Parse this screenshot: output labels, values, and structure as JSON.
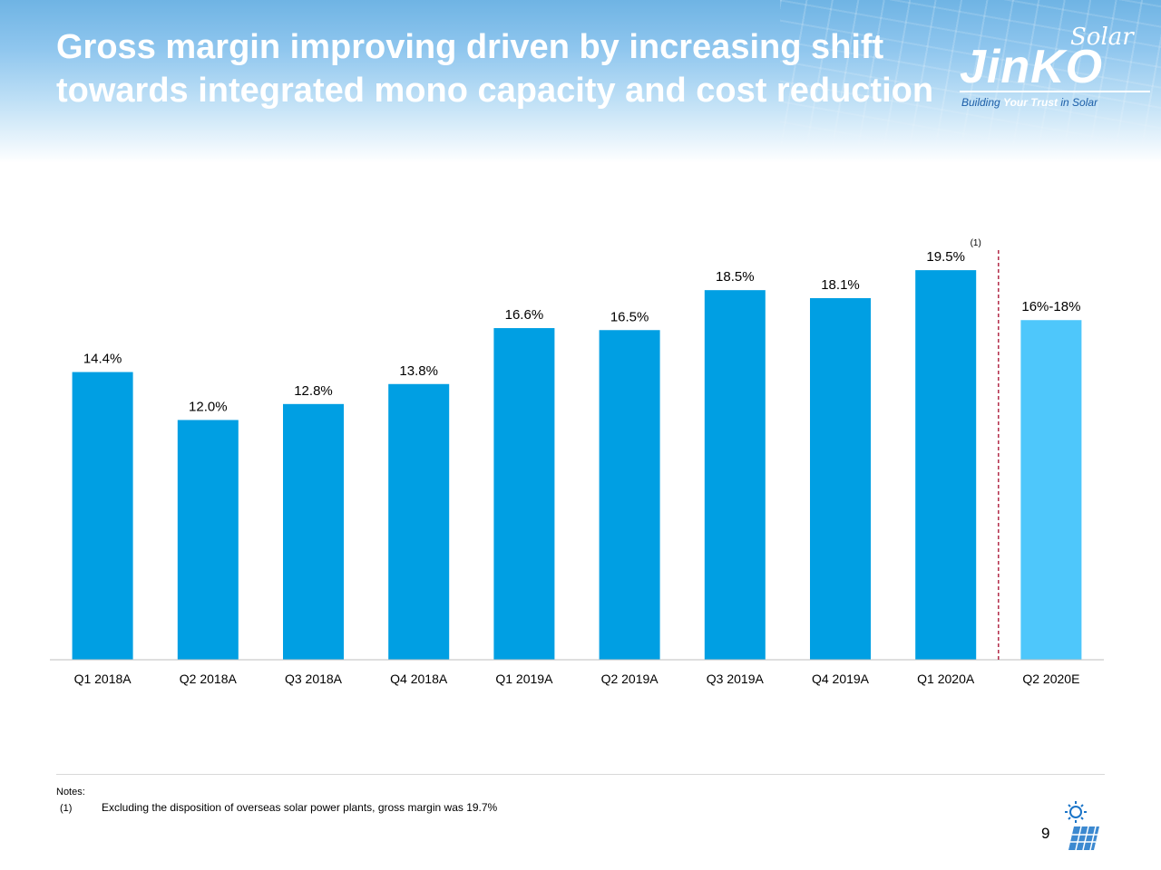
{
  "slide": {
    "title_lines": [
      "Gross margin improving driven by increasing shift",
      "towards integrated mono capacity and cost reduction"
    ],
    "logo": {
      "solar": "Solar",
      "brand": "JinKO",
      "tagline_pre": "Building ",
      "tagline_mid": "Your Trust",
      "tagline_post": " in Solar"
    },
    "page_number": "9",
    "notes": {
      "heading": "Notes:",
      "items": [
        {
          "marker": "(1)",
          "text": "Excluding the disposition of overseas solar power plants, gross margin was 19.7%"
        }
      ]
    }
  },
  "colors": {
    "actual": "#009fe3",
    "estimate": "#4ec7fb",
    "divider": "#b22a47",
    "axis": "#bfbfbf",
    "title": "#ffffff"
  },
  "chart_data": {
    "type": "bar",
    "categories": [
      "Q1 2018A",
      "Q2 2018A",
      "Q3 2018A",
      "Q4 2018A",
      "Q1 2019A",
      "Q2 2019A",
      "Q3 2019A",
      "Q4 2019A",
      "Q1 2020A",
      "Q2 2020E"
    ],
    "values": [
      14.4,
      12.0,
      12.8,
      13.8,
      16.6,
      16.5,
      18.5,
      18.1,
      19.5,
      17.0
    ],
    "ranges": [
      null,
      null,
      null,
      null,
      null,
      null,
      null,
      null,
      null,
      [
        16,
        18
      ]
    ],
    "labels": [
      "14.4%",
      "12.0%",
      "12.8%",
      "13.8%",
      "16.6%",
      "16.5%",
      "18.5%",
      "18.1%",
      "19.5%",
      "16%-18%"
    ],
    "estimate_index": 9,
    "footnote_marker": {
      "index": 8,
      "text": "(1)"
    },
    "unit": "%",
    "ylim": [
      0,
      22
    ],
    "title": "",
    "xlabel": "",
    "ylabel": "",
    "grid": false,
    "legend": "none"
  }
}
